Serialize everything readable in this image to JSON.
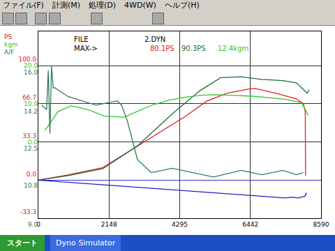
{
  "window": {
    "menu": [
      "ファイル(F)",
      "計測(M)",
      "処理(D)",
      "4WD(W)",
      "ヘルプ(H)"
    ],
    "taskbar": [
      "スタート",
      "Dyno Simulator"
    ]
  },
  "chart_data": {
    "type": "line",
    "ylabel": "PS",
    "y2label": "kgm",
    "y3label": "A/F",
    "annotations": [
      {
        "text": "FILE",
        "color": "#000000"
      },
      {
        "text": "2.DYN",
        "color": "#000000"
      },
      {
        "text": "MAX->",
        "color": "#000000"
      },
      {
        "text": "80.1PS",
        "color": "#e02020"
      },
      {
        "text": "90.3PS",
        "color": "#1d6b3e"
      },
      {
        "text": "12.4kgm",
        "color": "#33c433"
      }
    ],
    "xlim": [
      0,
      8590
    ],
    "xticks": [
      0,
      2148,
      4295,
      6442,
      8590
    ],
    "ylim": [
      -33.3,
      130
    ],
    "yticks": [
      {
        "value": -33.3,
        "label": "-33.3"
      },
      {
        "value": 0,
        "label": "0.0"
      },
      33.3,
      66.7,
      {
        "value": 100,
        "label": "100.0"
      }
    ],
    "y2lim": [
      -20,
      29
    ],
    "y2ticks": [
      {
        "value": 0,
        "label": "0.0"
      },
      {
        "value": 10,
        "label": "10.0"
      },
      {
        "value": 20,
        "label": "20.0"
      }
    ],
    "y3lim": [
      9,
      17.6
    ],
    "y3ticks": [
      {
        "value": 9,
        "label": "9.0"
      },
      10.8,
      12.5,
      14.2,
      {
        "value": 16,
        "label": "16.0"
      }
    ],
    "grid": true,
    "series": [
      {
        "color": "#e02020",
        "axis": "y",
        "x": [
          0,
          900,
          1960,
          2800,
          3640,
          4480,
          5110,
          5740,
          6370,
          6580,
          7210,
          7840,
          8050,
          8110,
          8120
        ],
        "values": [
          0,
          4.5,
          11,
          26,
          41,
          56,
          69,
          76,
          79.5,
          80.1,
          76,
          71,
          67,
          60,
          4
        ]
      },
      {
        "color": "#1d6b3e",
        "axis": "y",
        "x": [
          0,
          900,
          1960,
          3010,
          4070,
          4900,
          5540,
          6160,
          6790,
          7430,
          7840,
          8170,
          8230
        ],
        "values": [
          0,
          4,
          10,
          30,
          58,
          78,
          89.5,
          90.3,
          88,
          87,
          85,
          76,
          79
        ]
      },
      {
        "color": "#33c433",
        "axis": "y2",
        "x": [
          200,
          600,
          1000,
          1500,
          2000,
          2600,
          3000,
          3500,
          4000,
          4500,
          5000,
          5400,
          6000,
          6500,
          7000,
          7500,
          8000,
          8200
        ],
        "values": [
          3,
          8,
          9.5,
          8.5,
          6.8,
          6.5,
          8,
          9.8,
          11,
          11.8,
          12.3,
          12.4,
          12.2,
          12,
          11.6,
          11.2,
          10.3,
          7
        ]
      },
      {
        "color": "#2e7d5b",
        "axis": "y3",
        "x": [
          100,
          250,
          300,
          350,
          400,
          450,
          500,
          900,
          1750,
          2400,
          2530,
          2700,
          3010,
          3430,
          4070,
          4690,
          5320,
          6160,
          6790,
          7430,
          7840,
          8050
        ],
        "values": [
          14.2,
          14.0,
          15.8,
          12.9,
          16.0,
          15.0,
          15.0,
          14.6,
          14.2,
          14.4,
          14.2,
          13.5,
          11.7,
          11.1,
          11.3,
          11.1,
          10.9,
          11.2,
          11.0,
          11.2,
          11.0,
          11.1
        ]
      },
      {
        "color": "#2020c0",
        "axis": "y",
        "x": [
          0,
          7280,
          7500,
          7700,
          7900,
          8100,
          8150
        ],
        "values": [
          0,
          -15,
          -15.5,
          -15,
          -15.5,
          -14,
          -11
        ]
      }
    ]
  }
}
